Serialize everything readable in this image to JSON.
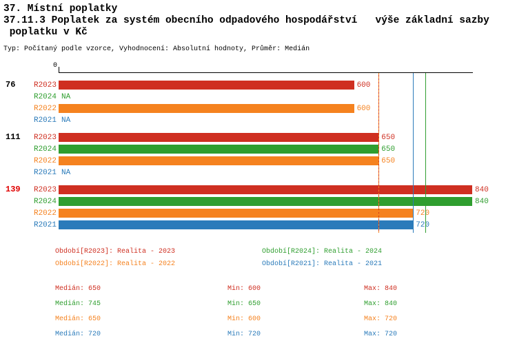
{
  "title": {
    "line1": "37. Místní poplatky",
    "line2": "37.11.3 Poplatek za systém obecního odpadového hospodářství   výše základní sazby",
    "line3": " poplatku v Kč",
    "subtitle": "Typ: Počítaný podle vzorce, Vyhodnocení: Absolutní hodnoty, Průměr: Medián"
  },
  "chart_data": {
    "type": "bar",
    "orientation": "horizontal",
    "unit": "Kč",
    "xlim": [
      0,
      840
    ],
    "grid": false,
    "axis": {
      "tick_label": "0"
    },
    "series": [
      {
        "id": "R2023",
        "label": "Realita - 2023",
        "color": "#cf2f21",
        "median": 650,
        "min": 600,
        "max": 840
      },
      {
        "id": "R2024",
        "label": "Realita - 2024",
        "color": "#2f9e2f",
        "median": 745,
        "min": 650,
        "max": 840
      },
      {
        "id": "R2022",
        "label": "Realita - 2022",
        "color": "#f5821f",
        "median": 650,
        "min": 600,
        "max": 720
      },
      {
        "id": "R2021",
        "label": "Realita - 2021",
        "color": "#2b7bba",
        "median": 720,
        "min": 720,
        "max": 720
      }
    ],
    "groups": [
      {
        "label": "76",
        "label_color": "#000000",
        "bars": [
          {
            "series": "R2023",
            "value": 600
          },
          {
            "series": "R2024",
            "value": null,
            "na": "NA"
          },
          {
            "series": "R2022",
            "value": 600
          },
          {
            "series": "R2021",
            "value": null,
            "na": "NA"
          }
        ]
      },
      {
        "label": "111",
        "label_color": "#000000",
        "bars": [
          {
            "series": "R2023",
            "value": 650
          },
          {
            "series": "R2024",
            "value": 650
          },
          {
            "series": "R2022",
            "value": 650
          },
          {
            "series": "R2021",
            "value": null,
            "na": "NA"
          }
        ]
      },
      {
        "label": "139",
        "label_color": "#e00000",
        "bars": [
          {
            "series": "R2023",
            "value": 840
          },
          {
            "series": "R2024",
            "value": 840
          },
          {
            "series": "R2022",
            "value": 720
          },
          {
            "series": "R2021",
            "value": 720
          }
        ]
      }
    ],
    "median_lines": [
      {
        "series": "R2023",
        "value": 650,
        "style": "solid"
      },
      {
        "series": "R2022",
        "value": 650,
        "style": "dashed"
      },
      {
        "series": "R2021",
        "value": 720,
        "style": "solid"
      },
      {
        "series": "R2024",
        "value": 745,
        "style": "solid"
      }
    ],
    "legend": [
      {
        "series": "R2023",
        "text": "Období[R2023]: Realita - 2023"
      },
      {
        "series": "R2024",
        "text": "Období[R2024]: Realita - 2024"
      },
      {
        "series": "R2022",
        "text": "Období[R2022]: Realita - 2022"
      },
      {
        "series": "R2021",
        "text": "Období[R2021]: Realita - 2021"
      }
    ],
    "stats_labels": {
      "median": "Medián:",
      "min": "Min:",
      "max": "Max:"
    }
  }
}
